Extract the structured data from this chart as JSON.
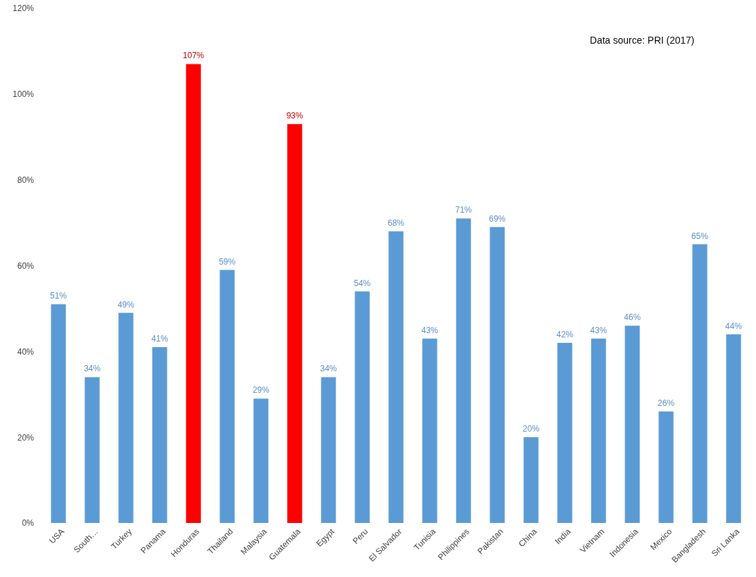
{
  "chart_data": {
    "type": "bar",
    "categories": [
      "USA",
      "South…",
      "Turkey",
      "Panama",
      "Honduras",
      "Thailand",
      "Malaysia",
      "Guatemala",
      "Egypt",
      "Peru",
      "El Salvador",
      "Tunisia",
      "Philippines",
      "Pakistan",
      "China",
      "India",
      "Vietnam",
      "Indonesia",
      "Mexico",
      "Bangladesh",
      "Sri Lanka"
    ],
    "values": [
      51,
      34,
      49,
      41,
      107,
      59,
      29,
      93,
      34,
      54,
      68,
      43,
      71,
      69,
      20,
      42,
      43,
      46,
      26,
      65,
      44
    ],
    "value_labels": [
      "51%",
      "34%",
      "49%",
      "41%",
      "107%",
      "59%",
      "29%",
      "93%",
      "34%",
      "54%",
      "68%",
      "43%",
      "71%",
      "69%",
      "20%",
      "42%",
      "43%",
      "46%",
      "26%",
      "65%",
      "44%"
    ],
    "colors": [
      "#5b9bd5",
      "#5b9bd5",
      "#5b9bd5",
      "#5b9bd5",
      "#ff0000",
      "#5b9bd5",
      "#5b9bd5",
      "#ff0000",
      "#5b9bd5",
      "#5b9bd5",
      "#5b9bd5",
      "#5b9bd5",
      "#5b9bd5",
      "#5b9bd5",
      "#5b9bd5",
      "#5b9bd5",
      "#5b9bd5",
      "#5b9bd5",
      "#5b9bd5",
      "#5b9bd5",
      "#5b9bd5"
    ],
    "ylim": [
      0,
      120
    ],
    "yticks": [
      {
        "value": 0,
        "label": "0%"
      },
      {
        "value": 20,
        "label": "20%"
      },
      {
        "value": 40,
        "label": "40%"
      },
      {
        "value": 60,
        "label": "60%"
      },
      {
        "value": 80,
        "label": "80%"
      },
      {
        "value": 100,
        "label": "100%"
      },
      {
        "value": 120,
        "label": "120%"
      }
    ],
    "annotations": [
      "Data source: PRI (2017)"
    ],
    "grid": false
  }
}
